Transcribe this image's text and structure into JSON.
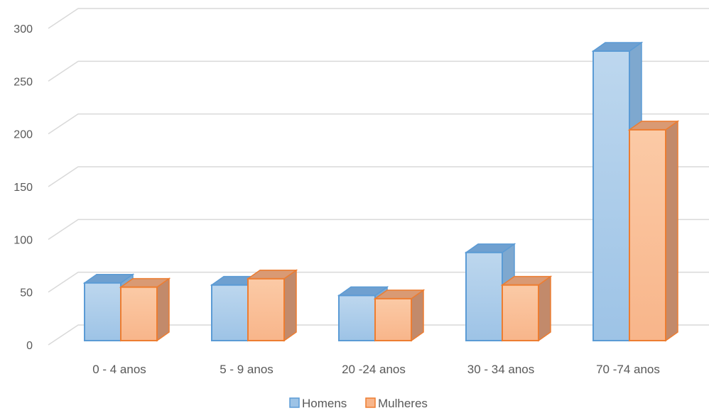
{
  "chart_data": {
    "type": "bar",
    "categories": [
      "0 - 4 anos",
      "5 - 9 anos",
      "20 -24 anos",
      "30 - 34 anos",
      "70 -74 anos"
    ],
    "series": [
      {
        "name": "Homens",
        "values": [
          55,
          53,
          43,
          84,
          276
        ],
        "color": "#9dc3e6",
        "edge": "#5b9bd5"
      },
      {
        "name": "Mulheres",
        "values": [
          51,
          59,
          40,
          53,
          201
        ],
        "color": "#f8b58a",
        "edge": "#ed7d31"
      }
    ],
    "yticks": [
      0,
      50,
      100,
      150,
      200,
      250,
      300
    ],
    "ylim": [
      0,
      300
    ],
    "grid": true,
    "legend": "bottom",
    "title": "",
    "xlabel": "",
    "ylabel": ""
  }
}
